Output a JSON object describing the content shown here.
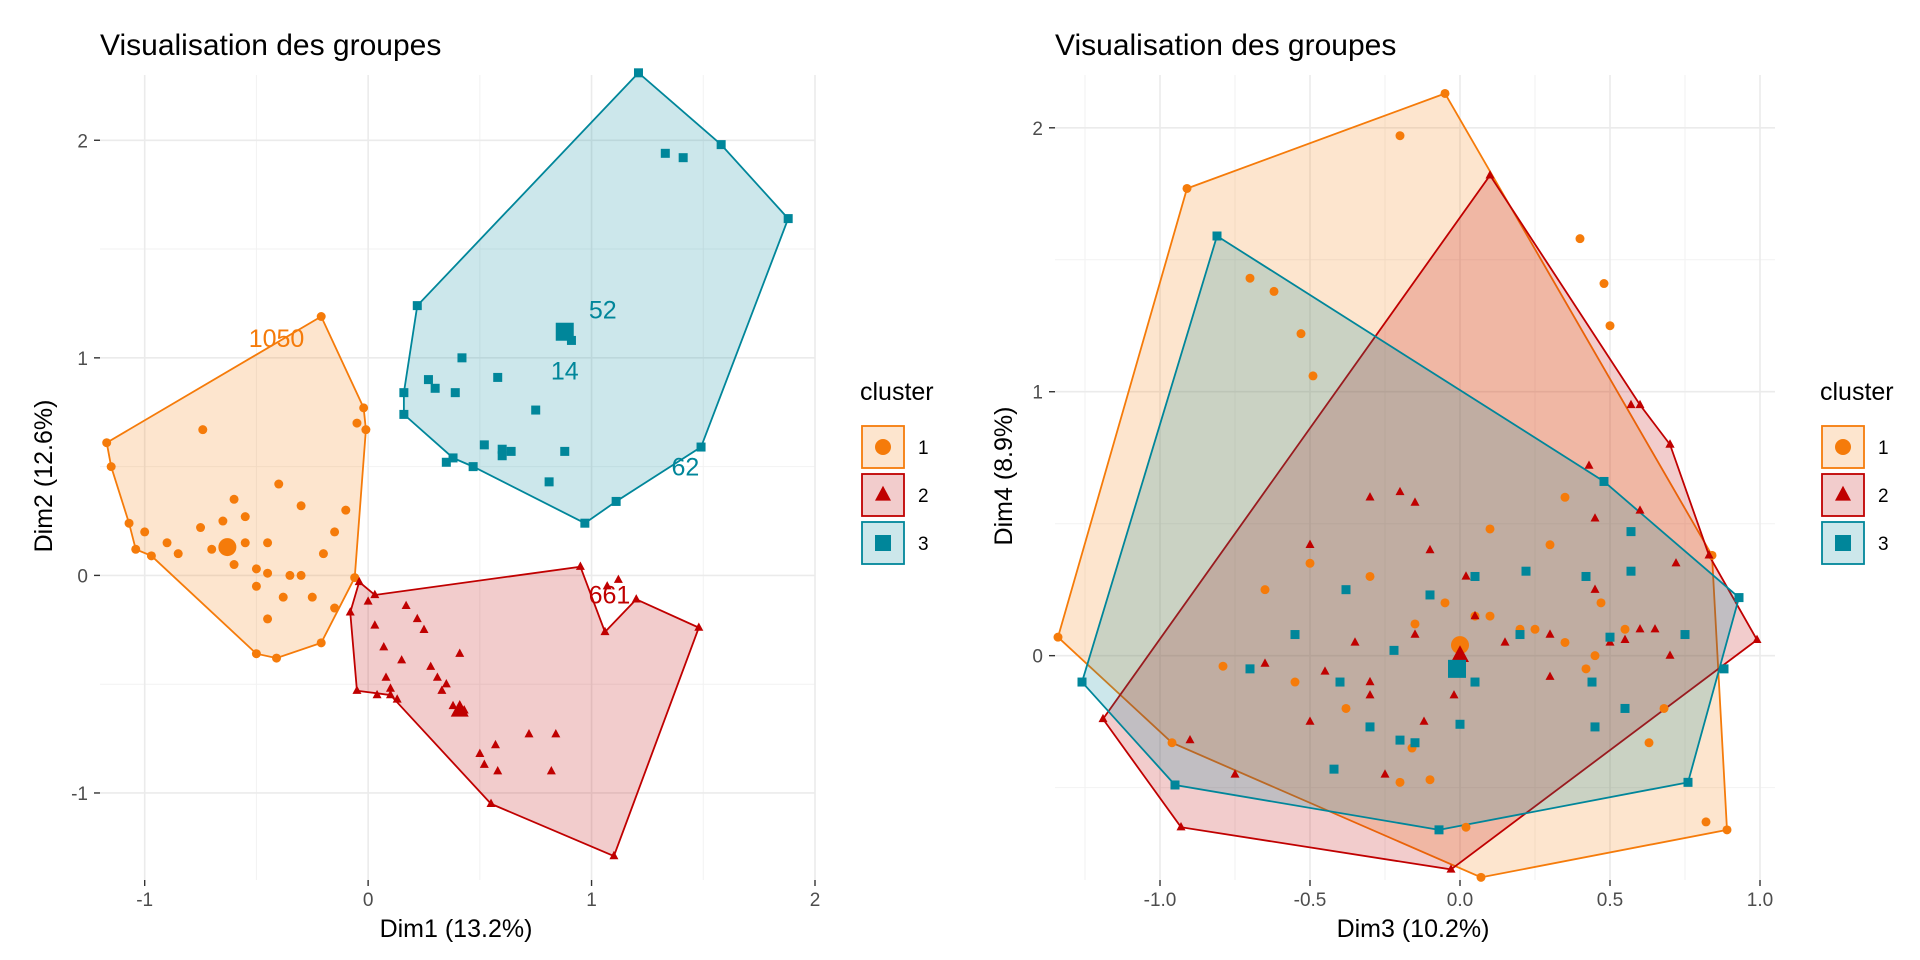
{
  "chart_data": [
    {
      "type": "scatter",
      "title": "Visualisation des groupes",
      "xlabel": "Dim1 (13.2%)",
      "ylabel": "Dim2 (12.6%)",
      "xlim": [
        -1.2,
        2.0
      ],
      "ylim": [
        -1.4,
        2.3
      ],
      "xticks": [
        -1,
        0,
        1,
        2
      ],
      "xtick_labels": [
        "-1",
        "0",
        "1",
        "2"
      ],
      "yticks": [
        -1,
        0,
        1,
        2
      ],
      "ytick_labels": [
        "-1",
        "0",
        "1",
        "2"
      ],
      "grid": true,
      "legend": {
        "title": "cluster",
        "position": "right",
        "entries": [
          "1",
          "2",
          "3"
        ]
      },
      "series": [
        {
          "name": "1",
          "marker": "circle",
          "color": "#F57B0A",
          "hull": [
            [
              -1.17,
              0.61
            ],
            [
              -1.15,
              0.5
            ],
            [
              -1.07,
              0.24
            ],
            [
              -1.04,
              0.12
            ],
            [
              -0.97,
              0.09
            ],
            [
              -0.5,
              -0.36
            ],
            [
              -0.41,
              -0.38
            ],
            [
              -0.21,
              -0.31
            ],
            [
              -0.06,
              -0.01
            ],
            [
              -0.01,
              0.67
            ],
            [
              -0.02,
              0.77
            ],
            [
              -0.21,
              1.19
            ]
          ],
          "points": [
            [
              -0.74,
              0.67
            ],
            [
              -0.6,
              0.35
            ],
            [
              -0.55,
              0.27
            ],
            [
              -0.65,
              0.25
            ],
            [
              -0.75,
              0.22
            ],
            [
              -0.7,
              0.12
            ],
            [
              -0.55,
              0.15
            ],
            [
              -0.5,
              0.03
            ],
            [
              -0.45,
              0.01
            ],
            [
              -0.6,
              0.05
            ],
            [
              -0.4,
              0.42
            ],
            [
              -0.45,
              0.15
            ],
            [
              -0.35,
              0.0
            ],
            [
              -0.38,
              -0.1
            ],
            [
              -0.45,
              -0.2
            ],
            [
              -0.5,
              -0.05
            ],
            [
              -0.3,
              0.32
            ],
            [
              -0.15,
              0.2
            ],
            [
              -0.1,
              0.3
            ],
            [
              -0.05,
              0.7
            ],
            [
              -0.15,
              -0.15
            ],
            [
              -0.25,
              -0.1
            ],
            [
              -0.3,
              0.0
            ],
            [
              -0.2,
              0.1
            ],
            [
              -1.0,
              0.2
            ],
            [
              -0.9,
              0.15
            ],
            [
              -0.85,
              0.1
            ]
          ],
          "centroid": [
            -0.63,
            0.13
          ],
          "labels": [
            {
              "text": "1050",
              "x": -0.41,
              "y": 1.05
            }
          ]
        },
        {
          "name": "2",
          "marker": "triangle",
          "color": "#C00000",
          "hull": [
            [
              -0.08,
              -0.17
            ],
            [
              -0.04,
              -0.03
            ],
            [
              0.03,
              -0.09
            ],
            [
              0.95,
              0.04
            ],
            [
              1.06,
              -0.26
            ],
            [
              1.2,
              -0.11
            ],
            [
              1.48,
              -0.24
            ],
            [
              1.1,
              -1.29
            ],
            [
              0.55,
              -1.05
            ],
            [
              0.1,
              -0.55
            ],
            [
              -0.05,
              -0.53
            ]
          ],
          "points": [
            [
              0.0,
              -0.12
            ],
            [
              0.03,
              -0.23
            ],
            [
              0.07,
              -0.33
            ],
            [
              0.08,
              -0.47
            ],
            [
              0.1,
              -0.52
            ],
            [
              0.04,
              -0.55
            ],
            [
              0.13,
              -0.57
            ],
            [
              0.15,
              -0.39
            ],
            [
              0.17,
              -0.14
            ],
            [
              0.22,
              -0.2
            ],
            [
              0.25,
              -0.25
            ],
            [
              0.28,
              -0.42
            ],
            [
              0.31,
              -0.47
            ],
            [
              0.33,
              -0.53
            ],
            [
              0.35,
              -0.5
            ],
            [
              0.38,
              -0.6
            ],
            [
              0.43,
              -0.62
            ],
            [
              0.41,
              -0.36
            ],
            [
              0.5,
              -0.82
            ],
            [
              0.52,
              -0.87
            ],
            [
              0.57,
              -0.78
            ],
            [
              0.58,
              -0.9
            ],
            [
              0.72,
              -0.73
            ],
            [
              0.82,
              -0.9
            ],
            [
              0.84,
              -0.73
            ],
            [
              1.12,
              -0.02
            ],
            [
              1.07,
              -0.05
            ]
          ],
          "centroid": [
            0.41,
            -0.62
          ],
          "labels": [
            {
              "text": "661",
              "x": 1.08,
              "y": -0.13
            }
          ]
        },
        {
          "name": "3",
          "marker": "square",
          "color": "#00869A",
          "hull": [
            [
              0.16,
              0.74
            ],
            [
              0.16,
              0.84
            ],
            [
              0.22,
              1.24
            ],
            [
              1.21,
              2.31
            ],
            [
              1.58,
              1.98
            ],
            [
              1.88,
              1.64
            ],
            [
              1.49,
              0.59
            ],
            [
              1.11,
              0.34
            ],
            [
              0.97,
              0.24
            ],
            [
              0.47,
              0.5
            ],
            [
              0.38,
              0.54
            ]
          ],
          "points": [
            [
              0.27,
              0.9
            ],
            [
              0.3,
              0.86
            ],
            [
              0.39,
              0.84
            ],
            [
              0.42,
              1.0
            ],
            [
              0.58,
              0.91
            ],
            [
              0.75,
              0.76
            ],
            [
              0.52,
              0.6
            ],
            [
              0.6,
              0.58
            ],
            [
              0.64,
              0.57
            ],
            [
              0.88,
              0.57
            ],
            [
              0.81,
              0.43
            ],
            [
              0.91,
              1.08
            ],
            [
              1.33,
              1.94
            ],
            [
              1.41,
              1.92
            ],
            [
              0.6,
              0.55
            ],
            [
              0.35,
              0.52
            ]
          ],
          "centroid": [
            0.88,
            1.12
          ],
          "labels": [
            {
              "text": "52",
              "x": 1.05,
              "y": 1.18
            },
            {
              "text": "14",
              "x": 0.88,
              "y": 0.9
            },
            {
              "text": "62",
              "x": 1.42,
              "y": 0.46
            }
          ]
        }
      ]
    },
    {
      "type": "scatter",
      "title": "Visualisation des groupes",
      "xlabel": "Dim3 (10.2%)",
      "ylabel": "Dim4 (8.9%)",
      "xlim": [
        -1.35,
        1.05
      ],
      "ylim": [
        -0.85,
        2.2
      ],
      "xticks": [
        -1.0,
        -0.5,
        0.0,
        0.5,
        1.0
      ],
      "xtick_labels": [
        "-1.0",
        "-0.5",
        "0.0",
        "0.5",
        "1.0"
      ],
      "yticks": [
        0,
        1,
        2
      ],
      "ytick_labels": [
        "0",
        "1",
        "2"
      ],
      "grid": true,
      "legend": {
        "title": "cluster",
        "position": "right",
        "entries": [
          "1",
          "2",
          "3"
        ]
      },
      "series": [
        {
          "name": "1",
          "marker": "circle",
          "color": "#F57B0A",
          "hull": [
            [
              -1.34,
              0.07
            ],
            [
              -0.91,
              1.77
            ],
            [
              -0.05,
              2.13
            ],
            [
              0.84,
              0.38
            ],
            [
              0.89,
              -0.66
            ],
            [
              0.07,
              -0.84
            ],
            [
              -0.96,
              -0.33
            ]
          ],
          "points": [
            [
              -0.2,
              1.97
            ],
            [
              -0.7,
              1.43
            ],
            [
              -0.62,
              1.38
            ],
            [
              -0.53,
              1.22
            ],
            [
              -0.49,
              1.06
            ],
            [
              -0.65,
              0.25
            ],
            [
              -0.79,
              -0.04
            ],
            [
              0.3,
              0.42
            ],
            [
              0.4,
              1.58
            ],
            [
              0.48,
              1.41
            ],
            [
              0.5,
              1.25
            ],
            [
              0.35,
              0.6
            ],
            [
              0.02,
              -0.65
            ],
            [
              0.82,
              -0.63
            ],
            [
              0.42,
              -0.05
            ],
            [
              -0.5,
              0.35
            ],
            [
              -0.3,
              0.3
            ],
            [
              -0.55,
              -0.1
            ],
            [
              -0.38,
              -0.2
            ],
            [
              -0.16,
              -0.35
            ],
            [
              -0.1,
              -0.47
            ],
            [
              -0.2,
              -0.48
            ],
            [
              0.1,
              0.48
            ],
            [
              0.2,
              0.1
            ],
            [
              0.1,
              0.15
            ],
            [
              0.25,
              0.1
            ],
            [
              0.35,
              0.05
            ],
            [
              0.47,
              0.2
            ],
            [
              0.55,
              0.1
            ],
            [
              0.68,
              -0.2
            ],
            [
              0.63,
              -0.33
            ],
            [
              -0.15,
              0.12
            ],
            [
              -0.05,
              0.2
            ],
            [
              0.05,
              0.15
            ],
            [
              0.45,
              0.0
            ]
          ],
          "centroid": [
            0.0,
            0.04
          ],
          "labels": []
        },
        {
          "name": "2",
          "marker": "triangle",
          "color": "#C00000",
          "hull": [
            [
              -1.19,
              -0.24
            ],
            [
              -0.93,
              -0.65
            ],
            [
              -0.03,
              -0.81
            ],
            [
              0.99,
              0.06
            ],
            [
              0.83,
              0.38
            ],
            [
              0.7,
              0.8
            ],
            [
              0.6,
              0.95
            ],
            [
              0.1,
              1.82
            ]
          ],
          "points": [
            [
              0.57,
              0.95
            ],
            [
              0.7,
              0.8
            ],
            [
              0.43,
              0.72
            ],
            [
              0.45,
              0.52
            ],
            [
              0.6,
              0.55
            ],
            [
              0.72,
              0.35
            ],
            [
              -0.3,
              0.6
            ],
            [
              -0.5,
              0.42
            ],
            [
              -0.2,
              0.62
            ],
            [
              -0.15,
              0.58
            ],
            [
              0.02,
              0.3
            ],
            [
              -0.1,
              0.4
            ],
            [
              0.05,
              0.15
            ],
            [
              0.15,
              0.05
            ],
            [
              0.3,
              0.08
            ],
            [
              0.5,
              0.05
            ],
            [
              0.55,
              0.06
            ],
            [
              0.6,
              0.1
            ],
            [
              0.7,
              0.0
            ],
            [
              0.65,
              0.1
            ],
            [
              -0.9,
              -0.32
            ],
            [
              -0.75,
              -0.45
            ],
            [
              -0.5,
              -0.25
            ],
            [
              -0.3,
              -0.15
            ],
            [
              -0.25,
              -0.45
            ],
            [
              -0.15,
              0.08
            ],
            [
              -0.35,
              0.05
            ],
            [
              -0.65,
              -0.03
            ],
            [
              -0.45,
              -0.06
            ],
            [
              -0.3,
              -0.1
            ],
            [
              -0.12,
              -0.25
            ],
            [
              -0.02,
              -0.15
            ],
            [
              0.45,
              0.25
            ],
            [
              0.3,
              -0.08
            ]
          ],
          "centroid": [
            0.0,
            0.0
          ],
          "labels": []
        },
        {
          "name": "3",
          "marker": "square",
          "color": "#00869A",
          "hull": [
            [
              -1.26,
              -0.1
            ],
            [
              -0.81,
              1.59
            ],
            [
              0.48,
              0.66
            ],
            [
              0.93,
              0.22
            ],
            [
              0.76,
              -0.48
            ],
            [
              -0.07,
              -0.66
            ],
            [
              -0.95,
              -0.49
            ]
          ],
          "points": [
            [
              -0.7,
              -0.05
            ],
            [
              -0.55,
              0.08
            ],
            [
              -0.38,
              0.25
            ],
            [
              -0.3,
              -0.27
            ],
            [
              -0.2,
              -0.32
            ],
            [
              -0.1,
              0.23
            ],
            [
              0.05,
              0.3
            ],
            [
              0.2,
              0.08
            ],
            [
              0.22,
              0.32
            ],
            [
              0.42,
              0.3
            ],
            [
              0.5,
              0.07
            ],
            [
              0.57,
              0.32
            ],
            [
              0.44,
              -0.1
            ],
            [
              0.55,
              -0.2
            ],
            [
              0.75,
              0.08
            ],
            [
              0.45,
              -0.27
            ],
            [
              0.88,
              -0.05
            ],
            [
              0.57,
              0.47
            ],
            [
              0.0,
              -0.26
            ],
            [
              -0.15,
              -0.33
            ],
            [
              -0.22,
              0.02
            ],
            [
              -0.4,
              -0.1
            ],
            [
              -0.42,
              -0.43
            ],
            [
              0.05,
              -0.1
            ]
          ],
          "centroid": [
            -0.01,
            -0.05
          ],
          "labels": []
        }
      ]
    }
  ]
}
